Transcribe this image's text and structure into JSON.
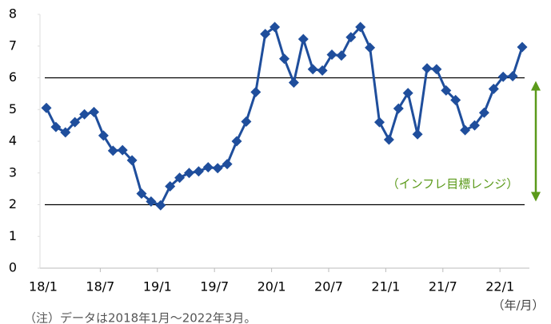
{
  "chart_data": {
    "type": "line",
    "categories": [
      "18/1",
      null,
      null,
      null,
      null,
      null,
      "18/7",
      null,
      null,
      null,
      null,
      null,
      "19/1",
      null,
      null,
      null,
      null,
      null,
      "19/7",
      null,
      null,
      null,
      null,
      null,
      "20/1",
      null,
      null,
      null,
      null,
      null,
      "20/7",
      null,
      null,
      null,
      null,
      null,
      "21/1",
      null,
      null,
      null,
      null,
      null,
      "21/7",
      null,
      null,
      null,
      null,
      null,
      "22/1",
      null,
      null
    ],
    "values": [
      5.05,
      4.45,
      4.28,
      4.6,
      4.85,
      4.92,
      4.18,
      3.7,
      3.72,
      3.4,
      2.35,
      2.1,
      1.98,
      2.58,
      2.85,
      3.0,
      3.05,
      3.18,
      3.15,
      3.28,
      4.0,
      4.62,
      5.55,
      7.38,
      7.6,
      6.6,
      5.85,
      7.22,
      6.27,
      6.23,
      6.73,
      6.7,
      7.28,
      7.6,
      6.95,
      4.6,
      4.05,
      5.03,
      5.52,
      4.22,
      6.3,
      6.27,
      5.6,
      5.3,
      4.35,
      4.5,
      4.9,
      5.65,
      6.03,
      6.05,
      6.97
    ],
    "color": "#1f4e9c",
    "ylim": [
      0,
      8
    ],
    "yticks": [
      0,
      1,
      2,
      3,
      4,
      5,
      6,
      7,
      8
    ],
    "reference_lines": [
      2,
      6
    ],
    "annotation": "（インフレ目標レンジ）",
    "annotation_color": "#5b9a1a",
    "x_unit": "（年/月）",
    "note": "（注）データは2018年1月～2022年3月。"
  }
}
